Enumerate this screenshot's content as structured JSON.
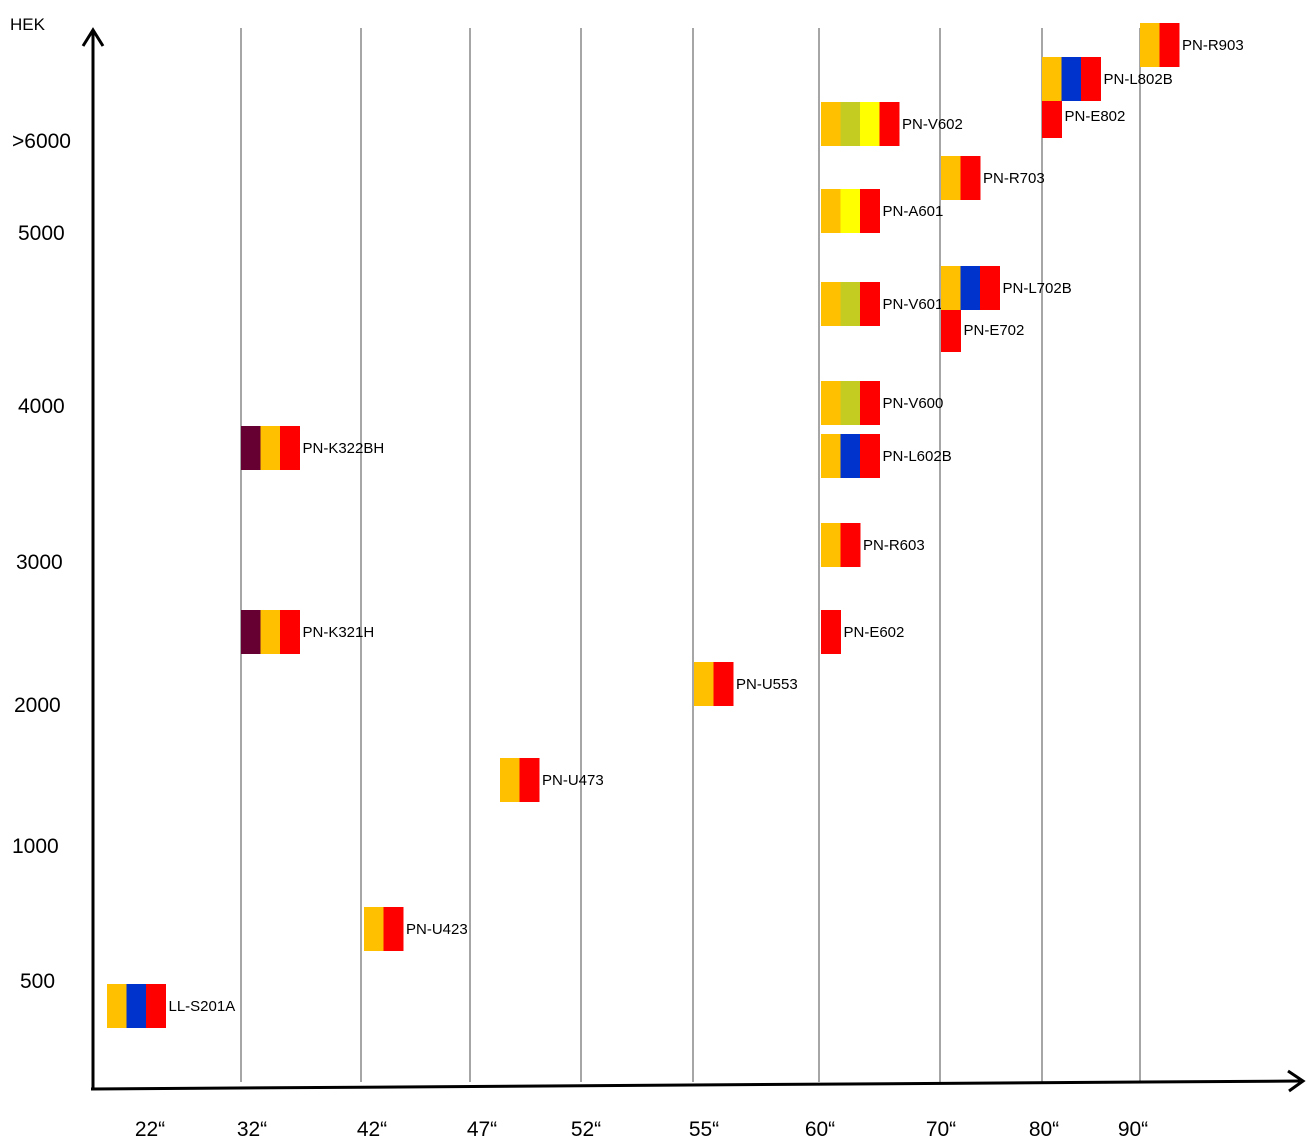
{
  "chart_data": {
    "type": "scatter",
    "title": "",
    "ylabel": "HEK",
    "xlabel": "",
    "grid": "vertical lines at x categories",
    "x_categories": [
      "22“",
      "32“",
      "42“",
      "47“",
      "52“",
      "55“",
      "60“",
      "70“",
      "80“",
      "90“"
    ],
    "y_ticks": [
      "500",
      "1000",
      "2000",
      "3000",
      "4000",
      "5000",
      ">6000"
    ],
    "colors": {
      "orange": "#FFC000",
      "red": "#FF0000",
      "blue": "#0033CC",
      "yellowgreen": "#C4CC22",
      "yellow": "#FFFF00",
      "maroon": "#660033",
      "grid": "#A6A6A6",
      "axis": "#000000"
    },
    "products": [
      {
        "name": "LL-S201A",
        "size": "22“",
        "price": 500,
        "features": [
          "orange",
          "blue",
          "red"
        ]
      },
      {
        "name": "PN-U423",
        "size": "42“",
        "price": 750,
        "features": [
          "orange",
          "red"
        ]
      },
      {
        "name": "PN-U473",
        "size": "47“",
        "price": 1500,
        "features": [
          "orange",
          "red"
        ]
      },
      {
        "name": "PN-U553",
        "size": "55“",
        "price": 2150,
        "features": [
          "orange",
          "red"
        ]
      },
      {
        "name": "PN-K321H",
        "size": "32“",
        "price": 2550,
        "features": [
          "maroon",
          "orange",
          "red"
        ]
      },
      {
        "name": "PN-K322BH",
        "size": "32“",
        "price": 3800,
        "features": [
          "maroon",
          "orange",
          "red"
        ]
      },
      {
        "name": "PN-E602",
        "size": "60“",
        "price": 2550,
        "features": [
          "red"
        ]
      },
      {
        "name": "PN-R603",
        "size": "60“",
        "price": 3150,
        "features": [
          "orange",
          "red"
        ]
      },
      {
        "name": "PN-L602B",
        "size": "60“",
        "price": 3750,
        "features": [
          "orange",
          "blue",
          "red"
        ]
      },
      {
        "name": "PN-V600",
        "size": "60“",
        "price": 4050,
        "features": [
          "orange",
          "yellowgreen",
          "red"
        ]
      },
      {
        "name": "PN-V601",
        "size": "60“",
        "price": 4700,
        "features": [
          "orange",
          "yellowgreen",
          "red"
        ]
      },
      {
        "name": "PN-A601",
        "size": "60“",
        "price": 5200,
        "features": [
          "orange",
          "yellow",
          "red"
        ]
      },
      {
        "name": "PN-V602",
        "size": "60“",
        "price": 6100,
        "features": [
          "orange",
          "yellowgreen",
          "yellow",
          "red"
        ]
      },
      {
        "name": "PN-E702",
        "size": "70“",
        "price": 4450,
        "features": [
          "red"
        ]
      },
      {
        "name": "PN-L702B",
        "size": "70“",
        "price": 4800,
        "features": [
          "orange",
          "blue",
          "red"
        ]
      },
      {
        "name": "PN-R703",
        "size": "70“",
        "price": 5600,
        "features": [
          "orange",
          "red"
        ]
      },
      {
        "name": "PN-E802",
        "size": "80“",
        "price": 6200,
        "features": [
          "red"
        ]
      },
      {
        "name": "PN-L802B",
        "size": "80“",
        "price": 6500,
        "features": [
          "orange",
          "blue",
          "red"
        ]
      },
      {
        "name": "PN-R903",
        "size": "90“",
        "price": 6800,
        "features": [
          "orange",
          "red"
        ]
      }
    ]
  }
}
